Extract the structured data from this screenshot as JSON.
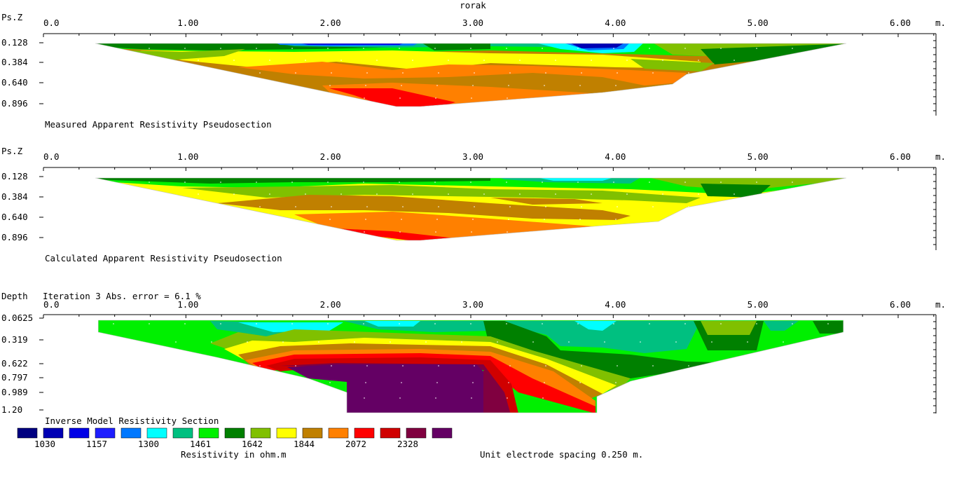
{
  "title": "rorak",
  "x_unit": "m.",
  "x_ticks": [
    "0.0",
    "1.00",
    "2.00",
    "3.00",
    "4.00",
    "5.00",
    "6.00"
  ],
  "x_range": [
    0,
    6.25
  ],
  "chart_data": [
    {
      "type": "heatmap",
      "title": "Measured Apparent Resistivity Pseudosection",
      "ylabel": "Ps.Z",
      "yticks": [
        "0.128",
        "0.384",
        "0.640",
        "0.896"
      ],
      "ylim": [
        0,
        1.05
      ],
      "x_extent": [
        0.375,
        5.625
      ],
      "max_depth": 0.896,
      "max_depth_x": 2.625
    },
    {
      "type": "heatmap",
      "title": "Calculated Apparent Resistivity Pseudosection",
      "ylabel": "Ps.Z",
      "yticks": [
        "0.128",
        "0.384",
        "0.640",
        "0.896"
      ],
      "ylim": [
        0,
        1.05
      ],
      "x_extent": [
        0.375,
        5.625
      ],
      "max_depth": 0.896,
      "max_depth_x": 2.625
    },
    {
      "type": "heatmap",
      "title": "Inverse Model Resistivity Section",
      "ylabel": "Depth",
      "subtitle": "Iteration 3 Abs. error = 6.1 %",
      "yticks": [
        "0.0625",
        "0.319",
        "0.622",
        "0.797",
        "0.989",
        "1.20"
      ],
      "ylim": [
        0,
        1.25
      ],
      "x_extent": [
        0.375,
        5.625
      ]
    }
  ],
  "legend": {
    "colors": [
      "#000080",
      "#0000b4",
      "#0000e6",
      "#1e1eff",
      "#0078ff",
      "#00ffff",
      "#00c080",
      "#00f000",
      "#008000",
      "#80c000",
      "#ffff00",
      "#c08000",
      "#ff8000",
      "#ff0000",
      "#d00000",
      "#800040",
      "#640064"
    ],
    "labels": [
      "1030",
      "1157",
      "1300",
      "1461",
      "1642",
      "1844",
      "2072",
      "2328"
    ],
    "unit_label": "Resistivity in ohm.m",
    "spacing_label": "Unit electrode spacing 0.250 m."
  }
}
